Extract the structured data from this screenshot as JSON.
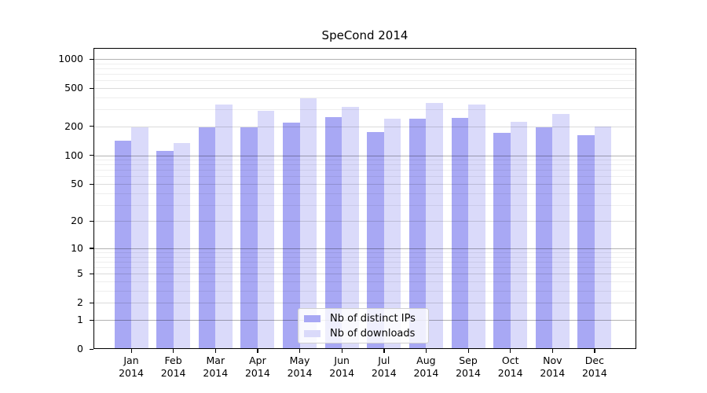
{
  "chart_data": {
    "type": "bar",
    "title": "SpeCond 2014",
    "categories": [
      "Jan",
      "Feb",
      "Mar",
      "Apr",
      "May",
      "Jun",
      "Jul",
      "Aug",
      "Sep",
      "Oct",
      "Nov",
      "Dec"
    ],
    "year": "2014",
    "series": [
      {
        "name": "Nb of distinct IPs",
        "color": "#a8a8f4",
        "values": [
          141,
          112,
          196,
          197,
          220,
          249,
          174,
          242,
          245,
          170,
          197,
          163
        ]
      },
      {
        "name": "Nb of downloads",
        "color": "#dadafa",
        "values": [
          196,
          135,
          335,
          288,
          390,
          317,
          240,
          350,
          335,
          223,
          269,
          200
        ]
      }
    ],
    "yscale": "log1p",
    "ylim": [
      0,
      1300
    ],
    "yticks": [
      0,
      1,
      2,
      5,
      10,
      20,
      50,
      100,
      200,
      500,
      1000
    ],
    "major_gridlines": [
      1,
      10,
      100,
      1000
    ],
    "grid": true,
    "legend_position": "lower center"
  }
}
